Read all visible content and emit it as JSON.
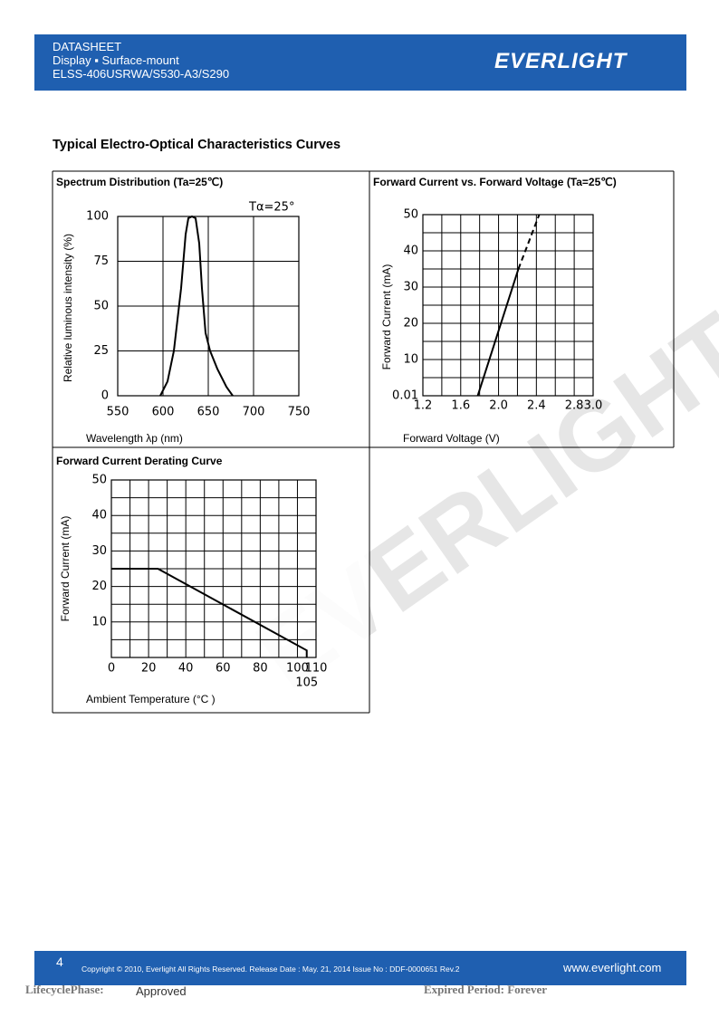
{
  "header": {
    "title": "DATASHEET",
    "subtitle": "Display ▪ Surface-mount",
    "part": "ELSS-406USRWA/S530-A3/S290",
    "logo": "EVERLIGHT"
  },
  "section_title": "Typical Electro-Optical Characteristics Curves",
  "watermark": "EVERLIGHT",
  "chart_data": [
    {
      "type": "line",
      "title": "Spectrum Distribution (Ta=25℃)",
      "annotation": "Tα=25°",
      "x_label": "Wavelength λp (nm)",
      "y_label": "Relative luminous intensity (%)",
      "xlim": [
        550,
        750
      ],
      "xticks": [
        550,
        600,
        650,
        700,
        750
      ],
      "ylim": [
        0,
        100
      ],
      "yticks": [
        0,
        25,
        50,
        75,
        100
      ],
      "grid": true,
      "series": [
        {
          "color": "#000000",
          "dashed": false,
          "x": [
            597,
            605,
            612,
            620,
            625,
            628,
            632,
            636,
            640,
            643,
            647,
            652,
            660,
            670,
            677
          ],
          "values": [
            0,
            8,
            25,
            60,
            90,
            99,
            100,
            99,
            85,
            60,
            35,
            25,
            15,
            5,
            0
          ]
        }
      ]
    },
    {
      "type": "line",
      "title": "Forward Current vs. Forward Voltage (Ta=25℃)",
      "x_label": "Forward Voltage (V)",
      "y_label": "Forward Current (mA)",
      "xlim": [
        1.2,
        3.0
      ],
      "xticks": [
        1.2,
        1.6,
        {
          "value": 2,
          "label": "2.0"
        },
        2.4,
        2.8,
        {
          "value": 3,
          "label": "3.0"
        }
      ],
      "xgrid": [
        1.2,
        1.4,
        1.6,
        1.8,
        2.0,
        2.2,
        2.4,
        2.6,
        2.8,
        3.0
      ],
      "ylim": [
        0,
        50
      ],
      "yticks": [
        0.01,
        10,
        20,
        30,
        40,
        50
      ],
      "ygrid": [
        0,
        5,
        10,
        15,
        20,
        25,
        30,
        35,
        40,
        45,
        50
      ],
      "series": [
        {
          "color": "#000000",
          "dashed": false,
          "x": [
            1.78,
            2.21
          ],
          "values": [
            0.01,
            35
          ]
        },
        {
          "color": "#000000",
          "dashed": true,
          "x": [
            2.21,
            2.43
          ],
          "values": [
            35,
            50
          ]
        }
      ]
    },
    {
      "type": "line",
      "title": "Forward Current Derating Curve",
      "x_label": "Ambient Temperature (°C )",
      "y_label": "Forward Current (mA)",
      "xlim": [
        0,
        110
      ],
      "xticks": [
        0,
        20,
        40,
        60,
        80,
        100,
        105,
        110
      ],
      "xgrid": [
        0,
        10,
        20,
        30,
        40,
        50,
        60,
        70,
        80,
        90,
        100,
        110
      ],
      "ylim": [
        0,
        50
      ],
      "yticks": [
        10,
        20,
        30,
        40,
        50
      ],
      "ygrid": [
        0,
        5,
        10,
        15,
        20,
        25,
        30,
        35,
        40,
        45,
        50
      ],
      "series": [
        {
          "color": "#000000",
          "dashed": false,
          "x": [
            0,
            25,
            105,
            105
          ],
          "values": [
            25,
            25,
            2,
            0
          ]
        }
      ]
    }
  ],
  "footer": {
    "page": "4",
    "copyright": "Copyright © 2010, Everlight All Rights Reserved. Release Date : May. 21, 2014 Issue No : DDF-0000651 Rev.2",
    "website": "www.everlight.com",
    "lifecycle_label": "LifecyclePhase:",
    "lifecycle_value": "Approved",
    "expired": "Expired Period: Forever"
  }
}
